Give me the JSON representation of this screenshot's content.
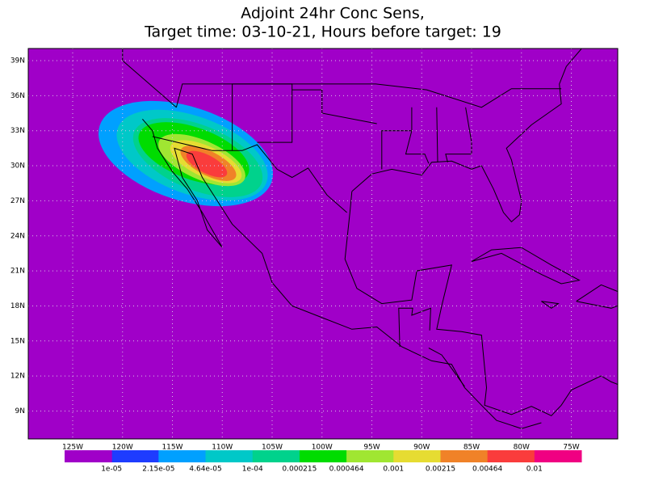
{
  "title": [
    "Adjoint 24hr Conc Sens,",
    "Target time: 03-10-21, Hours before target: 19"
  ],
  "lat_labels": [
    "39N",
    "36N",
    "33N",
    "30N",
    "27N",
    "24N",
    "21N",
    "18N",
    "15N",
    "12N",
    "9N"
  ],
  "lon_labels": [
    "125W",
    "120W",
    "115W",
    "110W",
    "105W",
    "100W",
    "95W",
    "90W",
    "85W",
    "80W",
    "75W"
  ],
  "colorbar": {
    "colors": [
      "#a000c8",
      "#8200dc",
      "#1e3cff",
      "#00a0ff",
      "#00c8c8",
      "#00d28c",
      "#00dc00",
      "#a0e632",
      "#e6dc32",
      "#f08228",
      "#fa3c3c",
      "#f00082"
    ],
    "labels": [
      "1e-05",
      "2.15e-05",
      "4.64e-05",
      "1e-04",
      "0.000215",
      "0.000464",
      "0.001",
      "0.00215",
      "0.00464",
      "0.01"
    ]
  }
}
